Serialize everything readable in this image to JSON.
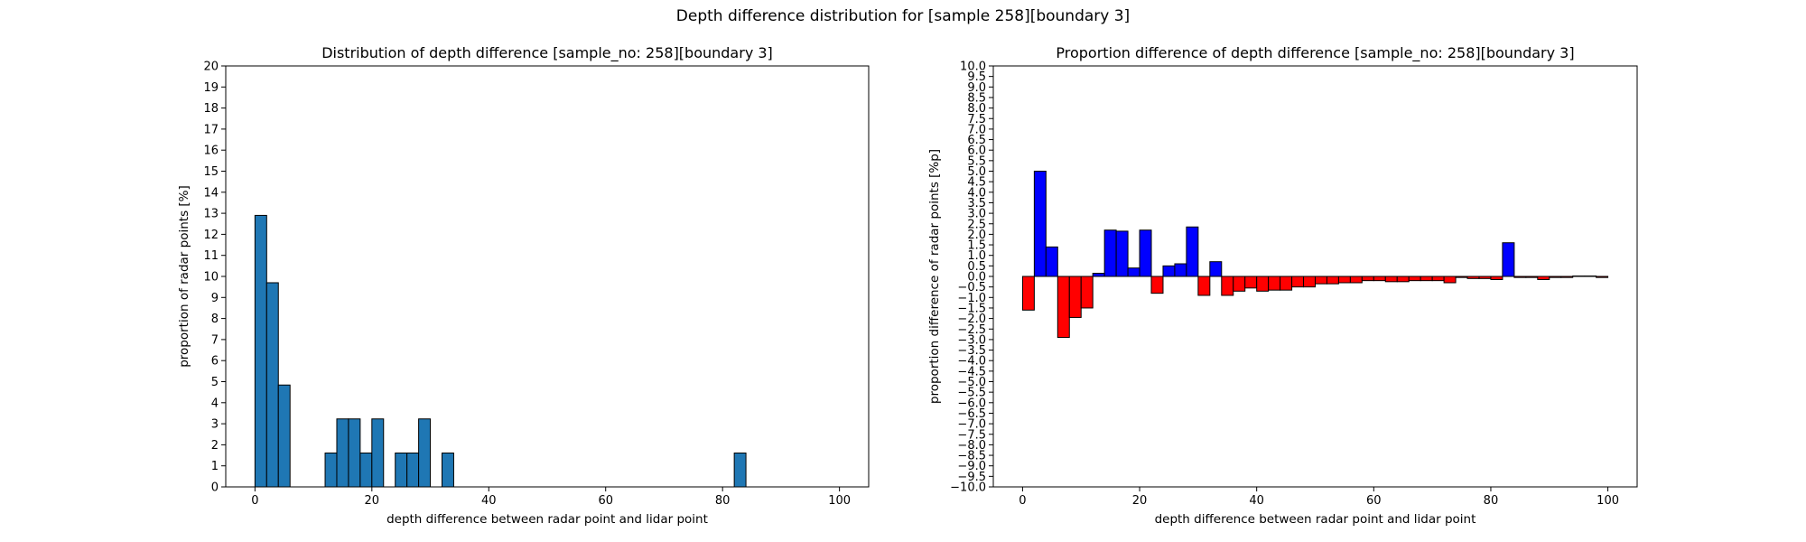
{
  "figure": {
    "suptitle": "Depth difference distribution for [sample 258][boundary 3]"
  },
  "chart_data": [
    {
      "type": "bar",
      "title": "Distribution of depth difference [sample_no: 258][boundary 3]",
      "xlabel": "depth difference between radar point and lidar point",
      "ylabel": "proportion of radar points [%]",
      "xlim": [
        -5,
        105
      ],
      "ylim": [
        0,
        20
      ],
      "xticks": [
        0,
        20,
        40,
        60,
        80,
        100
      ],
      "yticks": [
        0,
        1,
        2,
        3,
        4,
        5,
        6,
        7,
        8,
        9,
        10,
        11,
        12,
        13,
        14,
        15,
        16,
        17,
        18,
        19,
        20
      ],
      "bin_width": 2,
      "bars": [
        {
          "x": 0,
          "value": 12.9
        },
        {
          "x": 2,
          "value": 9.7
        },
        {
          "x": 4,
          "value": 4.84
        },
        {
          "x": 12,
          "value": 1.61
        },
        {
          "x": 14,
          "value": 3.23
        },
        {
          "x": 16,
          "value": 3.23
        },
        {
          "x": 18,
          "value": 1.61
        },
        {
          "x": 20,
          "value": 3.23
        },
        {
          "x": 24,
          "value": 1.61
        },
        {
          "x": 26,
          "value": 1.61
        },
        {
          "x": 28,
          "value": 3.23
        },
        {
          "x": 32,
          "value": 1.61
        },
        {
          "x": 82,
          "value": 1.61
        }
      ],
      "bar_color": "#1f77b4",
      "edge_color": "#000000"
    },
    {
      "type": "bar",
      "title": "Proportion difference of depth difference [sample_no: 258][boundary 3]",
      "xlabel": "depth difference between radar point and lidar point",
      "ylabel": "proportion difference of radar points [%p]",
      "xlim": [
        -5,
        105
      ],
      "ylim": [
        -10,
        10
      ],
      "xticks": [
        0,
        20,
        40,
        60,
        80,
        100
      ],
      "yticks": [
        10.0,
        9.5,
        9.0,
        8.5,
        8.0,
        7.5,
        7.0,
        6.5,
        6.0,
        5.5,
        5.0,
        4.5,
        4.0,
        3.5,
        3.0,
        2.5,
        2.0,
        1.5,
        1.0,
        0.5,
        0.0,
        -0.5,
        -1.0,
        -1.5,
        -2.0,
        -2.5,
        -3.0,
        -3.5,
        -4.0,
        -4.5,
        -5.0,
        -5.5,
        -6.0,
        -6.5,
        -7.0,
        -7.5,
        -8.0,
        -8.5,
        -9.0,
        -9.5,
        -10.0
      ],
      "ytick_labels": [
        "10.0",
        "9.5",
        "9.0",
        "8.5",
        "8.0",
        "7.5",
        "7.0",
        "6.5",
        "6.0",
        "5.5",
        "5.0",
        "4.5",
        "4.0",
        "3.5",
        "3.0",
        "2.5",
        "2.0",
        "1.5",
        "1.0",
        "0.5",
        "0.0",
        "−0.5",
        "−1.0",
        "−1.5",
        "−2.0",
        "−2.5",
        "−3.0",
        "−3.5",
        "−4.0",
        "−4.5",
        "−5.0",
        "−5.5",
        "−6.0",
        "−6.5",
        "−7.0",
        "−7.5",
        "−8.0",
        "−8.5",
        "−9.0",
        "−9.5",
        "−10.0"
      ],
      "bin_width": 2,
      "positive_color": "#0000ff",
      "negative_color": "#ff0000",
      "edge_color": "#000000",
      "bars": [
        {
          "x": 0,
          "value": -1.6
        },
        {
          "x": 2,
          "value": 5.0
        },
        {
          "x": 4,
          "value": 1.4
        },
        {
          "x": 6,
          "value": -2.9
        },
        {
          "x": 8,
          "value": -1.95
        },
        {
          "x": 10,
          "value": -1.5
        },
        {
          "x": 12,
          "value": 0.15
        },
        {
          "x": 14,
          "value": 2.2
        },
        {
          "x": 16,
          "value": 2.15
        },
        {
          "x": 18,
          "value": 0.4
        },
        {
          "x": 20,
          "value": 2.2
        },
        {
          "x": 22,
          "value": -0.8
        },
        {
          "x": 24,
          "value": 0.5
        },
        {
          "x": 26,
          "value": 0.6
        },
        {
          "x": 28,
          "value": 2.35
        },
        {
          "x": 30,
          "value": -0.9
        },
        {
          "x": 32,
          "value": 0.7
        },
        {
          "x": 34,
          "value": -0.9
        },
        {
          "x": 36,
          "value": -0.7
        },
        {
          "x": 38,
          "value": -0.55
        },
        {
          "x": 40,
          "value": -0.7
        },
        {
          "x": 42,
          "value": -0.65
        },
        {
          "x": 44,
          "value": -0.65
        },
        {
          "x": 46,
          "value": -0.5
        },
        {
          "x": 48,
          "value": -0.5
        },
        {
          "x": 50,
          "value": -0.35
        },
        {
          "x": 52,
          "value": -0.35
        },
        {
          "x": 54,
          "value": -0.3
        },
        {
          "x": 56,
          "value": -0.3
        },
        {
          "x": 58,
          "value": -0.2
        },
        {
          "x": 60,
          "value": -0.2
        },
        {
          "x": 62,
          "value": -0.25
        },
        {
          "x": 64,
          "value": -0.25
        },
        {
          "x": 66,
          "value": -0.2
        },
        {
          "x": 68,
          "value": -0.2
        },
        {
          "x": 70,
          "value": -0.2
        },
        {
          "x": 72,
          "value": -0.3
        },
        {
          "x": 74,
          "value": -0.05
        },
        {
          "x": 76,
          "value": -0.1
        },
        {
          "x": 78,
          "value": -0.1
        },
        {
          "x": 80,
          "value": -0.15
        },
        {
          "x": 82,
          "value": 1.6
        },
        {
          "x": 84,
          "value": -0.05
        },
        {
          "x": 86,
          "value": -0.05
        },
        {
          "x": 88,
          "value": -0.15
        },
        {
          "x": 90,
          "value": -0.05
        },
        {
          "x": 92,
          "value": -0.05
        },
        {
          "x": 94,
          "value": 0.02
        },
        {
          "x": 96,
          "value": 0.02
        },
        {
          "x": 98,
          "value": -0.05
        }
      ]
    }
  ]
}
